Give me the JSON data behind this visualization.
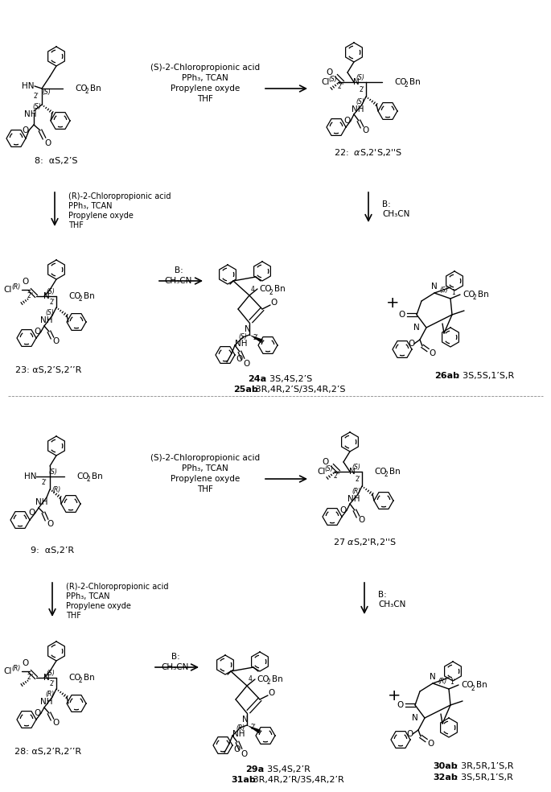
{
  "background_color": "#ffffff",
  "figsize": [
    6.85,
    9.84
  ],
  "dpi": 100,
  "text_color": "#000000",
  "line_color": "#000000",
  "top": {
    "reagent1": [
      "(S)-2-Chloropropionic acid",
      "PPh₃, TCAN",
      "Propylene oxyde",
      "THF"
    ],
    "reagent2": [
      "(R)-2-Chloropropionic acid",
      "PPh₃, TCAN",
      "Propylene oxyde",
      "THF"
    ],
    "base": [
      "B:",
      "CH₃CN"
    ],
    "label8": "8:  αS,2’S",
    "label22": "22:  αS,2’S,2’’S",
    "label23": "23: αS,2’S,2’’R",
    "label24a": "24a",
    "label24a_stereo": "3S,4S,2’S",
    "label25ab": "25ab",
    "label25ab_stereo": "3R,4R,2’S/3S,4R,2’S",
    "label26ab": "26ab",
    "label26ab_stereo": "3S,5S,1’S,R"
  },
  "bottom": {
    "reagent1": [
      "(S)-2-Chloropropionic acid",
      "PPh₃, TCAN",
      "Propylene oxyde",
      "THF"
    ],
    "reagent2": [
      "(R)-2-Chloropropionic acid",
      "PPh₃, TCAN",
      "Propylene oxyde",
      "THF"
    ],
    "base": [
      "B:",
      "CH₃CN"
    ],
    "label9": "9:  αS,2’R",
    "label27": "27 αS,2’R,2’’S",
    "label28": "28: αS,2’R,2’’R",
    "label29a": "29a",
    "label29a_stereo": "3S,4S,2’R",
    "label31ab": "31ab",
    "label31ab_stereo": "3R,4R,2’R/3S,4R,2’R",
    "label30ab": "30ab",
    "label30ab_stereo": "3R,5R,1’S,R",
    "label32ab": "32ab",
    "label32ab_stereo": "3S,5R,1’S,R"
  }
}
